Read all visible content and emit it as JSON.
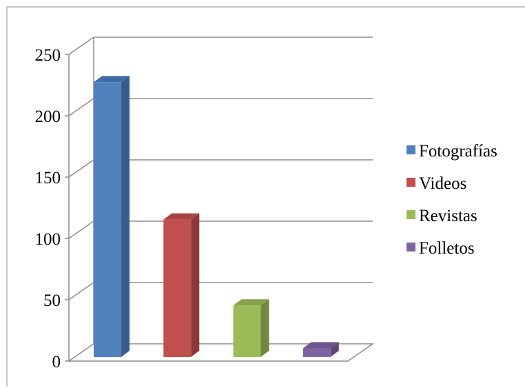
{
  "chart_data": {
    "type": "bar",
    "style": "3d-column",
    "categories": [
      "Fotografías",
      "Videos",
      "Revistas",
      "Folletos"
    ],
    "values": [
      224,
      112,
      42,
      7
    ],
    "colors": [
      "#4f81bd",
      "#c0504d",
      "#9bbb59",
      "#8064a2"
    ],
    "side_colors": [
      "#385d8a",
      "#8c3836",
      "#71893f",
      "#5c4776"
    ],
    "top_colors": [
      "#3f6ea6",
      "#a74441",
      "#86a34c",
      "#6d568d"
    ],
    "ylim": [
      0,
      250
    ],
    "yticks": [
      0,
      50,
      100,
      150,
      200,
      250
    ],
    "ytick_labels": [
      "0",
      "50",
      "100",
      "150",
      "200",
      "250"
    ],
    "grid": true,
    "legend": {
      "position": "right",
      "entries": [
        "Fotografías",
        "Videos",
        "Revistas",
        "Folletos"
      ]
    },
    "title": "",
    "xlabel": "",
    "ylabel": ""
  }
}
